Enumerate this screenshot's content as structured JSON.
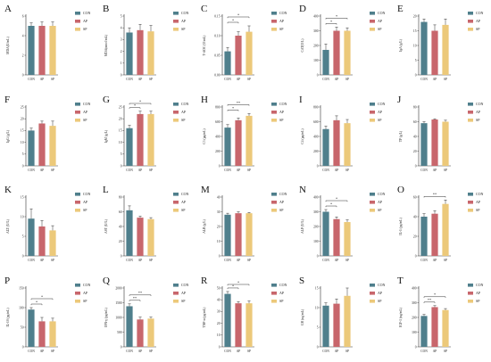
{
  "colors": {
    "CON": "#4f7f8c",
    "AP": "#c8666c",
    "SP": "#ecc97a",
    "axis": "#333333",
    "sig": "#333333"
  },
  "legend": [
    "CON",
    "AP",
    "SP"
  ],
  "chart_data": [
    {
      "letter": "A",
      "type": "bar",
      "ylabel": "MDA(U/mL)",
      "categories": [
        "CON",
        "AP",
        "SP"
      ],
      "values": [
        5.0,
        5.0,
        5.0
      ],
      "errors": [
        0.3,
        0.4,
        0.4
      ],
      "ylim": [
        0,
        6
      ],
      "ticks": [
        "0",
        "2",
        "4",
        "6"
      ],
      "sig": []
    },
    {
      "letter": "B",
      "type": "bar",
      "ylabel": "MDA(nmol/mL)",
      "categories": [
        "CON",
        "AP",
        "SP"
      ],
      "values": [
        3.6,
        3.8,
        3.7
      ],
      "errors": [
        0.4,
        0.5,
        0.5
      ],
      "ylim": [
        0,
        5
      ],
      "ticks": [
        "0",
        "1",
        "2",
        "3",
        "4",
        "5"
      ],
      "sig": []
    },
    {
      "letter": "C",
      "type": "bar",
      "ylabel": "T-AOC (U/mL)",
      "categories": [
        "CON",
        "AP",
        "SP"
      ],
      "values": [
        0.06,
        0.1,
        0.11
      ],
      "errors": [
        0.01,
        0.01,
        0.015
      ],
      "ylim": [
        0,
        0.15
      ],
      "ticks": [
        "0.00",
        "0.05",
        "0.10",
        "0.15"
      ],
      "sig": [
        {
          "a": 0,
          "b": 1,
          "label": "*"
        },
        {
          "a": 0,
          "b": 2,
          "label": "*"
        }
      ]
    },
    {
      "letter": "D",
      "type": "bar",
      "ylabel": "CAT(U/L)",
      "categories": [
        "CON",
        "AP",
        "SP"
      ],
      "values": [
        170,
        300,
        300
      ],
      "errors": [
        40,
        25,
        20
      ],
      "ylim": [
        0,
        400
      ],
      "ticks": [
        "0",
        "100",
        "200",
        "300",
        "400"
      ],
      "sig": [
        {
          "a": 0,
          "b": 1,
          "label": "*"
        },
        {
          "a": 0,
          "b": 2,
          "label": "*"
        }
      ]
    },
    {
      "letter": "E",
      "type": "bar",
      "ylabel": "IgA (g/L)",
      "categories": [
        "CON",
        "AP",
        "SP"
      ],
      "values": [
        18,
        15,
        17
      ],
      "errors": [
        1,
        2,
        2
      ],
      "ylim": [
        0,
        20
      ],
      "ticks": [
        "0",
        "5",
        "10",
        "15",
        "20"
      ],
      "sig": []
    },
    {
      "letter": "F",
      "type": "bar",
      "ylabel": "IgG (g/L)",
      "categories": [
        "CON",
        "AP",
        "SP"
      ],
      "values": [
        15,
        18,
        17
      ],
      "errors": [
        1,
        1,
        2
      ],
      "ylim": [
        0,
        25
      ],
      "ticks": [
        "0",
        "5",
        "10",
        "15",
        "20",
        "25"
      ],
      "sig": []
    },
    {
      "letter": "G",
      "type": "bar",
      "ylabel": "IgM (g/L)",
      "categories": [
        "CON",
        "AP",
        "SP"
      ],
      "values": [
        16,
        22,
        22
      ],
      "errors": [
        1.2,
        1.2,
        1.2
      ],
      "ylim": [
        0,
        25
      ],
      "ticks": [
        "0",
        "5",
        "10",
        "15",
        "20",
        "25"
      ],
      "sig": [
        {
          "a": 0,
          "b": 1,
          "label": "*"
        },
        {
          "a": 0,
          "b": 2,
          "label": "*"
        }
      ]
    },
    {
      "letter": "H",
      "type": "bar",
      "ylabel": "C3 (μg/mL)",
      "categories": [
        "CON",
        "AP",
        "SP"
      ],
      "values": [
        520,
        620,
        680
      ],
      "errors": [
        40,
        30,
        30
      ],
      "ylim": [
        0,
        800
      ],
      "ticks": [
        "0",
        "200",
        "400",
        "600",
        "800"
      ],
      "sig": [
        {
          "a": 0,
          "b": 1,
          "label": "*"
        },
        {
          "a": 0,
          "b": 2,
          "label": "**"
        }
      ]
    },
    {
      "letter": "I",
      "type": "bar",
      "ylabel": "C4 (μg/mL)",
      "categories": [
        "CON",
        "AP",
        "SP"
      ],
      "values": [
        500,
        620,
        580
      ],
      "errors": [
        40,
        60,
        50
      ],
      "ylim": [
        0,
        800
      ],
      "ticks": [
        "0",
        "200",
        "400",
        "600",
        "800"
      ],
      "sig": []
    },
    {
      "letter": "J",
      "type": "bar",
      "ylabel": "TP (g/L)",
      "categories": [
        "CON",
        "AP",
        "SP"
      ],
      "values": [
        58,
        63,
        60
      ],
      "errors": [
        2,
        1,
        2
      ],
      "ylim": [
        0,
        80
      ],
      "ticks": [
        "0",
        "20",
        "40",
        "60",
        "80"
      ],
      "sig": []
    },
    {
      "letter": "K",
      "type": "bar",
      "ylabel": "ALT (U/L)",
      "categories": [
        "CON",
        "AP",
        "SP"
      ],
      "values": [
        9.5,
        7.5,
        6.5
      ],
      "errors": [
        2.5,
        1.5,
        1.2
      ],
      "ylim": [
        0,
        15
      ],
      "ticks": [
        "0",
        "5",
        "10",
        "15"
      ],
      "sig": []
    },
    {
      "letter": "L",
      "type": "bar",
      "ylabel": "AST (U/L)",
      "categories": [
        "CON",
        "AP",
        "SP"
      ],
      "values": [
        62,
        52,
        50
      ],
      "errors": [
        6,
        2,
        2
      ],
      "ylim": [
        0,
        80
      ],
      "ticks": [
        "0",
        "20",
        "40",
        "60",
        "80"
      ],
      "sig": []
    },
    {
      "letter": "M",
      "type": "bar",
      "ylabel": "ALB (g/L)",
      "categories": [
        "CON",
        "AP",
        "SP"
      ],
      "values": [
        28,
        29,
        29
      ],
      "errors": [
        1,
        1,
        0.5
      ],
      "ylim": [
        0,
        40
      ],
      "ticks": [
        "0",
        "10",
        "20",
        "30",
        "40"
      ],
      "sig": []
    },
    {
      "letter": "N",
      "type": "bar",
      "ylabel": "ALP (U/L)",
      "categories": [
        "CON",
        "AP",
        "SP"
      ],
      "values": [
        300,
        250,
        230
      ],
      "errors": [
        15,
        15,
        15
      ],
      "ylim": [
        0,
        400
      ],
      "ticks": [
        "0",
        "100",
        "200",
        "300",
        "400"
      ],
      "sig": [
        {
          "a": 0,
          "b": 1,
          "label": "*"
        },
        {
          "a": 0,
          "b": 2,
          "label": "*"
        }
      ]
    },
    {
      "letter": "O",
      "type": "bar",
      "ylabel": "IL-1 (pg/mL)",
      "categories": [
        "CON",
        "AP",
        "SP"
      ],
      "values": [
        40,
        43,
        53
      ],
      "errors": [
        3,
        3,
        4
      ],
      "ylim": [
        0,
        60
      ],
      "ticks": [
        "0",
        "20",
        "40",
        "60"
      ],
      "sig": [
        {
          "a": 0,
          "b": 2,
          "label": "**"
        }
      ]
    },
    {
      "letter": "P",
      "type": "bar",
      "ylabel": "IL-10 (pg/mL)",
      "categories": [
        "CON",
        "AP",
        "SP"
      ],
      "values": [
        95,
        65,
        65
      ],
      "errors": [
        5,
        10,
        8
      ],
      "ylim": [
        0,
        150
      ],
      "ticks": [
        "0",
        "50",
        "100",
        "150"
      ],
      "sig": [
        {
          "a": 0,
          "b": 1,
          "label": "*"
        },
        {
          "a": 0,
          "b": 2,
          "label": "*"
        }
      ]
    },
    {
      "letter": "Q",
      "type": "bar",
      "ylabel": "IFN-γ (pg/mL)",
      "categories": [
        "CON",
        "AP",
        "SP"
      ],
      "values": [
        1380,
        930,
        960
      ],
      "errors": [
        80,
        80,
        50
      ],
      "ylim": [
        0,
        2000
      ],
      "ticks": [
        "0",
        "500",
        "1000",
        "1500",
        "2000"
      ],
      "sig": [
        {
          "a": 0,
          "b": 1,
          "label": "**"
        },
        {
          "a": 0,
          "b": 2,
          "label": "**"
        }
      ]
    },
    {
      "letter": "R",
      "type": "bar",
      "ylabel": "TNF-α (pg/mL)",
      "categories": [
        "CON",
        "AP",
        "SP"
      ],
      "values": [
        45,
        37,
        37
      ],
      "errors": [
        2,
        1.5,
        2
      ],
      "ylim": [
        0,
        50
      ],
      "ticks": [
        "0",
        "10",
        "20",
        "30",
        "40",
        "50"
      ],
      "sig": [
        {
          "a": 0,
          "b": 1,
          "label": "*"
        },
        {
          "a": 0,
          "b": 2,
          "label": "*"
        }
      ]
    },
    {
      "letter": "S",
      "type": "bar",
      "ylabel": "GH (ng/mL)",
      "categories": [
        "CON",
        "AP",
        "SP"
      ],
      "values": [
        10.5,
        11,
        13
      ],
      "errors": [
        0.7,
        1.2,
        2
      ],
      "ylim": [
        0,
        15
      ],
      "ticks": [
        "0",
        "5",
        "10",
        "15"
      ],
      "sig": []
    },
    {
      "letter": "T",
      "type": "bar",
      "ylabel": "IGF-1 (ng/mL)",
      "categories": [
        "CON",
        "AP",
        "SP"
      ],
      "values": [
        210,
        270,
        250
      ],
      "errors": [
        10,
        10,
        10
      ],
      "ylim": [
        0,
        400
      ],
      "ticks": [
        "0",
        "100",
        "200",
        "300",
        "400"
      ],
      "sig": [
        {
          "a": 0,
          "b": 1,
          "label": "**"
        },
        {
          "a": 0,
          "b": 2,
          "label": "*"
        }
      ]
    }
  ]
}
